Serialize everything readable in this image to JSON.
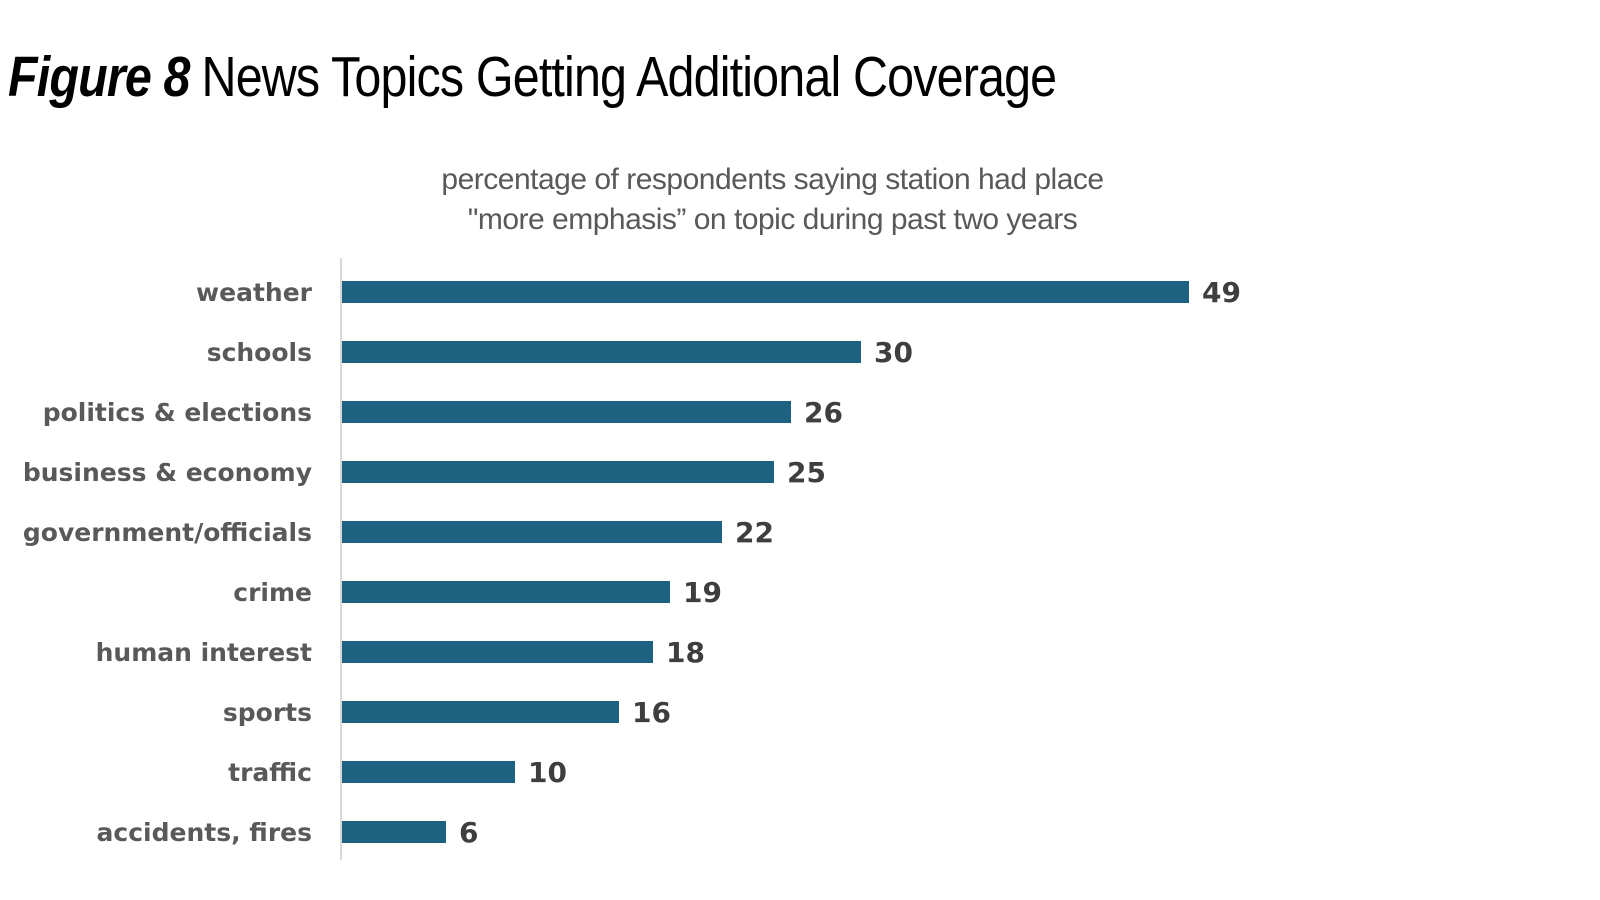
{
  "header": {
    "figure_label": "Figure 8",
    "title": "News Topics Getting Additional Coverage"
  },
  "chart_data": {
    "type": "bar",
    "orientation": "horizontal",
    "title": "News Topics Getting Additional Coverage",
    "subtitle_line1": "percentage of respondents saying station had place",
    "subtitle_line2": "\"more emphasis” on topic during past two years",
    "categories": [
      "weather",
      "schools",
      "politics & elections",
      "business & economy",
      "government/officials",
      "crime",
      "human interest",
      "sports",
      "traffic",
      "accidents, fires"
    ],
    "values": [
      49,
      30,
      26,
      25,
      22,
      19,
      18,
      16,
      10,
      6
    ],
    "xlim": [
      0,
      49
    ],
    "value_axis_visible": false,
    "grid": false,
    "legend": false,
    "data_labels": true,
    "colors": {
      "bar": "#1d6280",
      "category_label": "#595959",
      "value_label": "#3e3e3e",
      "axis_line": "#d9d9d9",
      "title": "#000000",
      "subtitle": "#595959"
    }
  }
}
